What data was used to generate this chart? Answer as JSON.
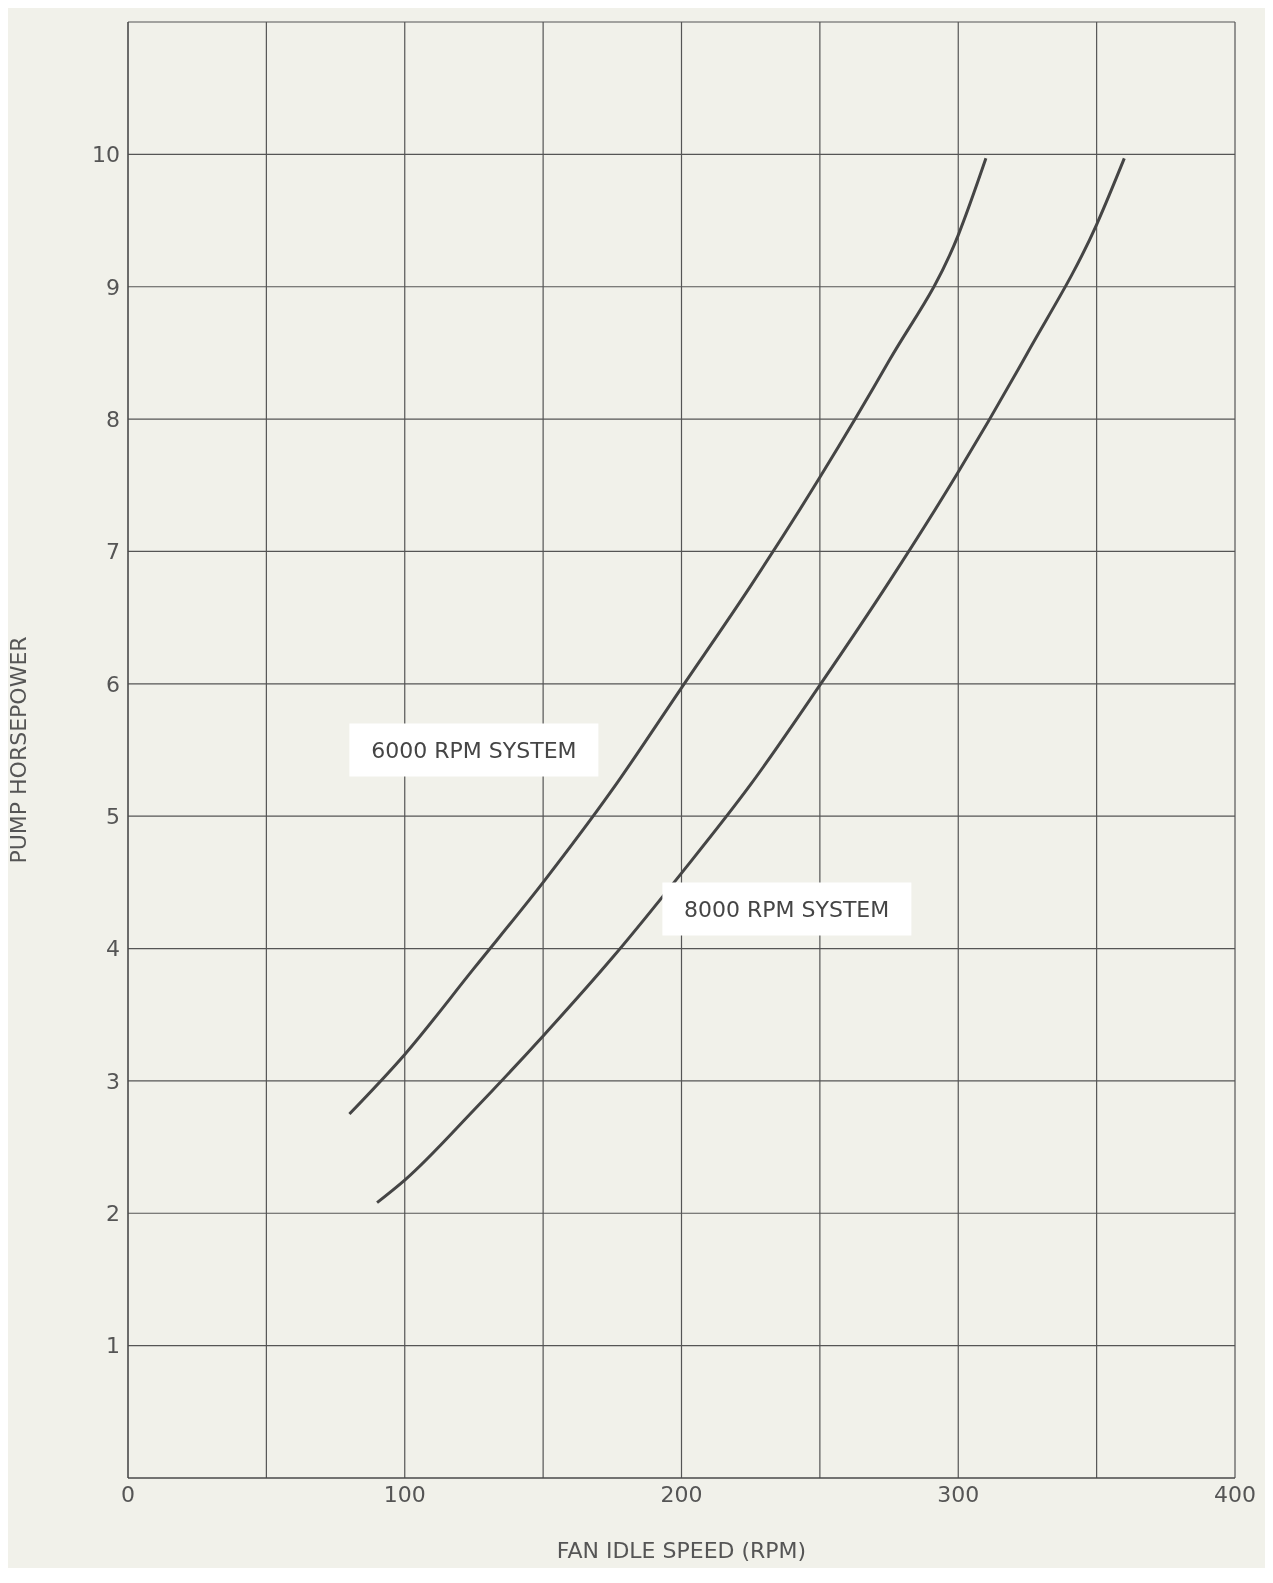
{
  "chart_data": {
    "type": "line",
    "xlabel": "FAN IDLE SPEED (RPM)",
    "ylabel": "PUMP HORSEPOWER",
    "grid": true,
    "marker": "none",
    "line_style": "solid",
    "xlim": [
      0,
      400
    ],
    "xticks": [
      0,
      {
        "value": 50,
        "label": null
      },
      100,
      {
        "value": 150,
        "label": null
      },
      200,
      {
        "value": 250,
        "label": null
      },
      300,
      {
        "value": 350,
        "label": null
      },
      400
    ],
    "ylim": [
      0,
      11
    ],
    "yticks": [
      {
        "value": 0,
        "label": null
      },
      1,
      2,
      3,
      4,
      5,
      6,
      7,
      8,
      9,
      10,
      {
        "value": 11,
        "label": null
      }
    ],
    "series": [
      {
        "name": "6000 RPM SYSTEM",
        "color": "#454545",
        "x": [
          80,
          100,
          125,
          150,
          175,
          200,
          225,
          250,
          275,
          300,
          310
        ],
        "values": [
          2.75,
          3.2,
          3.85,
          4.5,
          5.2,
          5.97,
          6.74,
          7.56,
          8.44,
          9.39,
          9.97
        ]
      },
      {
        "name": "8000 RPM SYSTEM",
        "color": "#454545",
        "x": [
          90,
          100,
          125,
          150,
          175,
          200,
          225,
          250,
          275,
          300,
          325,
          350,
          360
        ],
        "values": [
          2.08,
          2.25,
          2.78,
          3.34,
          3.93,
          4.57,
          5.24,
          5.99,
          6.77,
          7.6,
          8.5,
          9.47,
          9.97
        ]
      }
    ]
  }
}
